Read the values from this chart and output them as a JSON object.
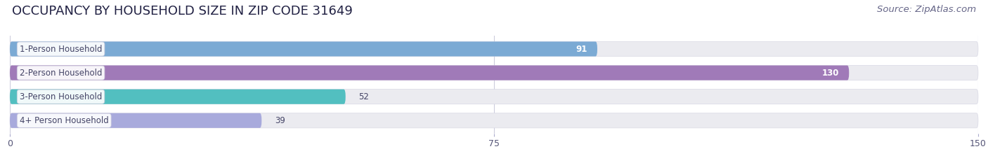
{
  "title": "OCCUPANCY BY HOUSEHOLD SIZE IN ZIP CODE 31649",
  "source": "Source: ZipAtlas.com",
  "categories": [
    "1-Person Household",
    "2-Person Household",
    "3-Person Household",
    "4+ Person Household"
  ],
  "values": [
    91,
    130,
    52,
    39
  ],
  "bar_colors": [
    "#7baad4",
    "#a07ab8",
    "#52bfc0",
    "#a8aadc"
  ],
  "xlim": [
    0,
    150
  ],
  "xticks": [
    0,
    75,
    150
  ],
  "background_color": "#ffffff",
  "bar_bg_color": "#ebebf0",
  "title_fontsize": 13,
  "source_fontsize": 9.5,
  "label_fontsize": 8.5,
  "value_fontsize": 8.5,
  "tick_fontsize": 9,
  "figsize": [
    14.06,
    2.33
  ],
  "dpi": 100
}
